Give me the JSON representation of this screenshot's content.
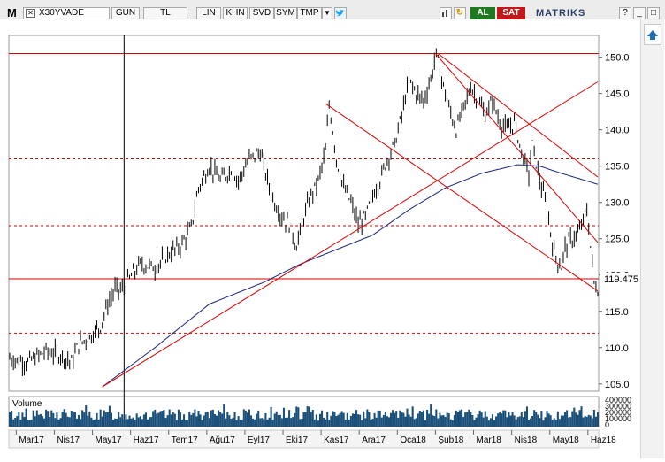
{
  "toolbar": {
    "logo": "M",
    "symbol": "X30YVADE",
    "period": "GUN",
    "currency": "TL",
    "buttons": [
      "LIN",
      "KHN",
      "SVD",
      "SYM",
      "TMP"
    ],
    "buy_label": "AL",
    "sell_label": "SAT",
    "brand": "MATRIKS",
    "brand_suffix": "",
    "window_buttons": [
      "?",
      "_",
      "□"
    ]
  },
  "colors": {
    "price": "#000000",
    "ma": "#1a237e",
    "trend": "#d90000",
    "volume": "#1a4f7a",
    "buy": "#1f7a1f",
    "sell": "#c11919"
  },
  "icons": [
    "dropdown-icon",
    "twitter-icon",
    "refresh-icon",
    "scroll-up-icon",
    "scroll-down-icon"
  ],
  "chart_data": {
    "type": "line",
    "y_ticks": [
      105,
      110,
      115,
      120,
      125,
      130,
      135,
      140,
      145,
      150
    ],
    "ylim": [
      104,
      153
    ],
    "last_price": "119.475",
    "x_tick_labels": [
      "Mar17",
      "Nis17",
      "May17",
      "Haz17",
      "Tem17",
      "Ağu17",
      "Eyl17",
      "Eki17",
      "Kas17",
      "Ara17",
      "Oca18",
      "Şub18",
      "Mar18",
      "Nis18",
      "May18",
      "Haz18"
    ],
    "x_tick_index": [
      6,
      27,
      48,
      69,
      90,
      111,
      132,
      153,
      174,
      195,
      216,
      237,
      258,
      279,
      300,
      321
    ],
    "horizontal_levels": [
      {
        "value": 150.5,
        "style": "solid"
      },
      {
        "value": 136,
        "style": "dashed"
      },
      {
        "value": 126.8,
        "style": "dashed"
      },
      {
        "value": 119.475,
        "style": "solid"
      },
      {
        "value": 112,
        "style": "dashed"
      }
    ],
    "vertical_marker_index": 63,
    "trend_lines": [
      {
        "from": [
          51,
          104.6
        ],
        "to": [
          324,
          146.6
        ]
      },
      {
        "from": [
          235,
          150.4
        ],
        "to": [
          324,
          124.5
        ]
      },
      {
        "from": [
          174,
          143.6
        ],
        "to": [
          324,
          117.8
        ]
      },
      {
        "from": [
          236,
          150.5
        ],
        "to": [
          324,
          133.5
        ]
      },
      {
        "from": [
          324,
          140
        ],
        "to": [
          324,
          140
        ]
      }
    ],
    "price_anchors": [
      [
        0,
        108.5
      ],
      [
        10,
        108
      ],
      [
        20,
        109.5
      ],
      [
        28,
        109
      ],
      [
        34,
        108
      ],
      [
        38,
        110.5
      ],
      [
        44,
        111.5
      ],
      [
        50,
        113
      ],
      [
        54,
        116
      ],
      [
        58,
        118
      ],
      [
        62,
        118
      ],
      [
        66,
        119.5
      ],
      [
        72,
        121.5
      ],
      [
        80,
        121
      ],
      [
        88,
        123
      ],
      [
        94,
        124
      ],
      [
        100,
        126.5
      ],
      [
        104,
        132
      ],
      [
        110,
        135
      ],
      [
        116,
        133
      ],
      [
        122,
        134.5
      ],
      [
        126,
        133
      ],
      [
        132,
        136
      ],
      [
        138,
        137
      ],
      [
        142,
        133
      ],
      [
        146,
        130
      ],
      [
        150,
        128
      ],
      [
        154,
        127
      ],
      [
        158,
        124
      ],
      [
        162,
        128
      ],
      [
        166,
        131
      ],
      [
        170,
        133
      ],
      [
        174,
        137
      ],
      [
        176,
        143.5
      ],
      [
        178,
        140
      ],
      [
        180,
        136
      ],
      [
        184,
        132
      ],
      [
        188,
        130
      ],
      [
        192,
        127
      ],
      [
        196,
        128
      ],
      [
        200,
        131
      ],
      [
        204,
        133
      ],
      [
        208,
        136
      ],
      [
        212,
        138
      ],
      [
        216,
        142
      ],
      [
        220,
        147
      ],
      [
        224,
        145
      ],
      [
        228,
        144
      ],
      [
        232,
        147
      ],
      [
        235,
        150.5
      ],
      [
        238,
        147
      ],
      [
        242,
        143
      ],
      [
        246,
        140
      ],
      [
        250,
        143
      ],
      [
        254,
        146
      ],
      [
        258,
        144
      ],
      [
        262,
        142
      ],
      [
        266,
        144
      ],
      [
        270,
        141
      ],
      [
        274,
        140
      ],
      [
        278,
        141
      ],
      [
        282,
        137
      ],
      [
        286,
        134
      ],
      [
        288,
        138
      ],
      [
        292,
        133
      ],
      [
        296,
        129
      ],
      [
        300,
        123
      ],
      [
        304,
        121
      ],
      [
        306,
        124
      ],
      [
        310,
        125
      ],
      [
        314,
        126
      ],
      [
        318,
        129
      ],
      [
        320,
        124
      ],
      [
        322,
        119
      ],
      [
        324,
        118
      ]
    ],
    "ma_anchors": [
      [
        51,
        104.6
      ],
      [
        80,
        110
      ],
      [
        110,
        116
      ],
      [
        140,
        119
      ],
      [
        160,
        121.5
      ],
      [
        180,
        123.5
      ],
      [
        200,
        125.5
      ],
      [
        220,
        129
      ],
      [
        240,
        132
      ],
      [
        260,
        134
      ],
      [
        280,
        135.2
      ],
      [
        292,
        135
      ],
      [
        304,
        134
      ],
      [
        324,
        132.5
      ]
    ],
    "volume_label": "Volume",
    "volume_ticks": [
      "400000",
      "300000",
      "200000",
      "100000",
      "0"
    ],
    "volume_max": 400000
  }
}
